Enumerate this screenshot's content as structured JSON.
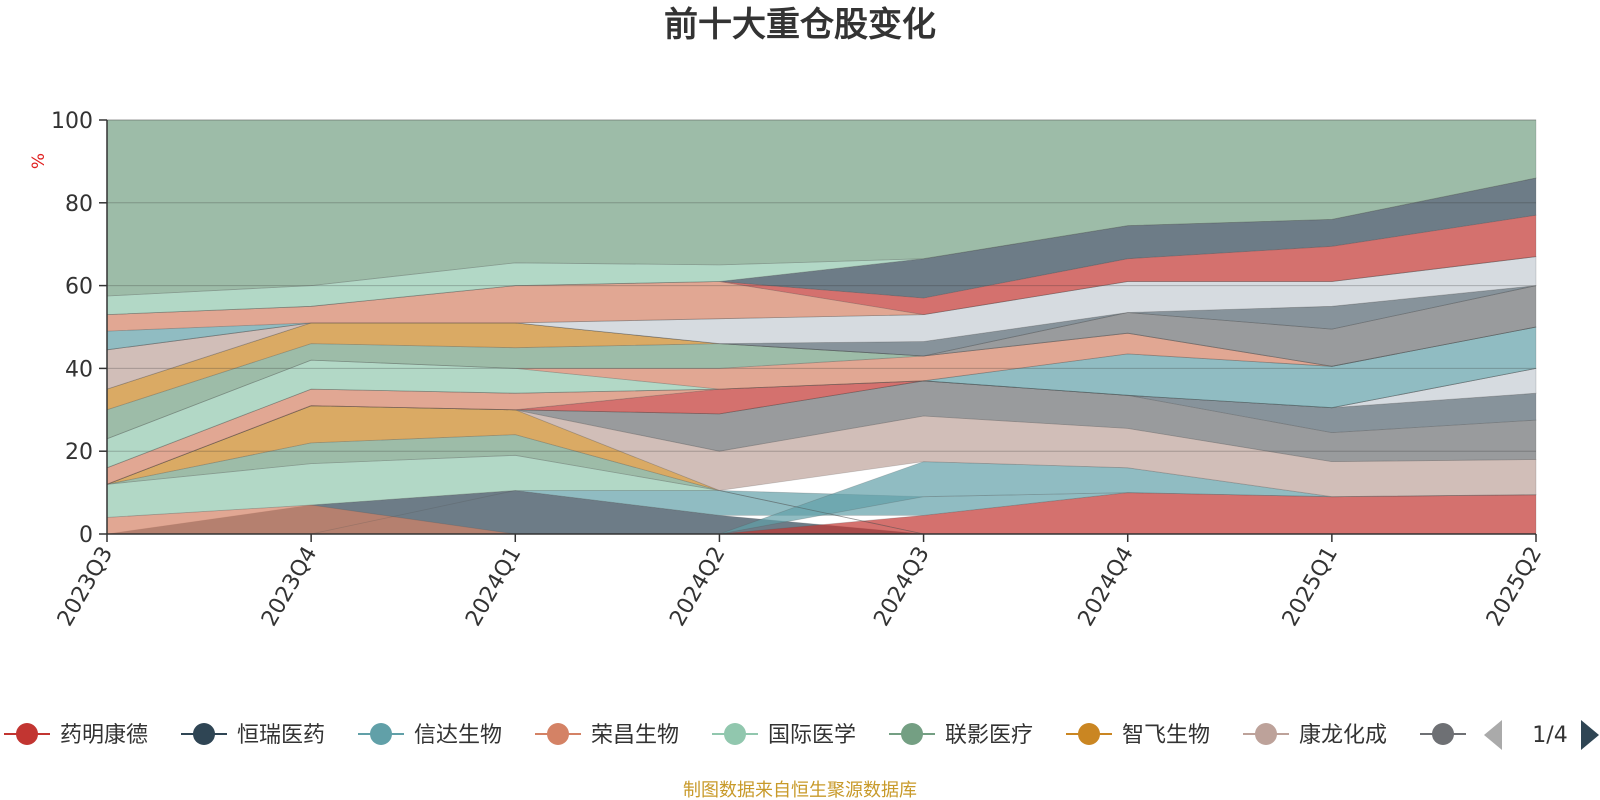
{
  "chart_data": {
    "type": "area",
    "title": "前十大重仓股变化",
    "ylabel": "%",
    "ylim": [
      0,
      100
    ],
    "yticks": [
      0,
      20,
      40,
      60,
      80,
      100
    ],
    "categories": [
      "2023Q3",
      "2023Q4",
      "2024Q1",
      "2024Q2",
      "2024Q3",
      "2024Q4",
      "2025Q1",
      "2025Q2"
    ],
    "grid": true,
    "legend_position": "bottom",
    "legend_page": "1/4",
    "bands": [
      {
        "color": "#2f4554",
        "opacity": 0.7,
        "lower": [
          0,
          0,
          0,
          0,
          0,
          0,
          0,
          0
        ],
        "upper": [
          0,
          7,
          10.5,
          4.5,
          0,
          0,
          0,
          0
        ]
      },
      {
        "color": "#c23531",
        "opacity": 0.7,
        "lower": [
          0,
          0,
          0,
          0,
          0,
          0,
          0,
          0
        ],
        "upper": [
          0,
          0,
          0,
          0,
          4.5,
          10,
          9,
          9.5
        ]
      },
      {
        "color": "#d48265",
        "opacity": 0.7,
        "lower": [
          0,
          0,
          0,
          0,
          0,
          0,
          0,
          0
        ],
        "upper": [
          4,
          7,
          0,
          0,
          0,
          0,
          0,
          0
        ]
      },
      {
        "color": "#61a0a8",
        "opacity": 0.7,
        "lower": [
          0,
          0,
          10.5,
          4.5,
          4.5,
          10,
          9,
          9.5
        ],
        "upper": [
          0,
          0,
          10.5,
          10.5,
          9,
          10,
          9,
          9.5
        ]
      },
      {
        "color": "#91c7ae",
        "opacity": 0.7,
        "lower": [
          4,
          7,
          10.5,
          10.5,
          0,
          0,
          0,
          0
        ],
        "upper": [
          12,
          17,
          19,
          10.5,
          0,
          0,
          0,
          0
        ]
      },
      {
        "color": "#61a0a8",
        "opacity": 0.7,
        "lower": [
          0,
          0,
          0,
          0,
          9,
          10,
          9,
          9.5
        ],
        "upper": [
          0,
          0,
          0,
          0,
          17.5,
          16,
          9,
          9.5
        ]
      },
      {
        "color": "#749f83",
        "opacity": 0.7,
        "lower": [
          12,
          17,
          19,
          10.5,
          0,
          0,
          0,
          0
        ],
        "upper": [
          12,
          22,
          24,
          10.5,
          0,
          0,
          0,
          0
        ]
      },
      {
        "color": "#ca8622",
        "opacity": 0.7,
        "lower": [
          12,
          22,
          24,
          10.5,
          0,
          0,
          0,
          0
        ],
        "upper": [
          12,
          31,
          30,
          10.5,
          0,
          0,
          0,
          0
        ]
      },
      {
        "color": "#bda29a",
        "opacity": 0.7,
        "lower": [
          12,
          31,
          30,
          10.5,
          17.5,
          16,
          9,
          9.5
        ],
        "upper": [
          12,
          31,
          30,
          20,
          28.5,
          25.5,
          17.5,
          18
        ]
      },
      {
        "color": "#6e7074",
        "opacity": 0.7,
        "lower": [
          12,
          31,
          30,
          20,
          28.5,
          25.5,
          17.5,
          18
        ],
        "upper": [
          12,
          31,
          30,
          29,
          37,
          33.5,
          24.5,
          27.5
        ]
      },
      {
        "color": "#546570",
        "opacity": 0.7,
        "lower": [
          12,
          31,
          30,
          29,
          37,
          33.5,
          24.5,
          27.5
        ],
        "upper": [
          12,
          31,
          30,
          29,
          37,
          33.5,
          30.5,
          34
        ]
      },
      {
        "color": "#c4ccd3",
        "opacity": 0.7,
        "lower": [
          12,
          31,
          30,
          29,
          37,
          33.5,
          30.5,
          34
        ],
        "upper": [
          12,
          31,
          30,
          29,
          37,
          33.5,
          30.5,
          40
        ]
      },
      {
        "color": "#c23531",
        "opacity": 0.7,
        "lower": [
          12,
          31,
          30,
          29,
          37,
          33.5,
          30.5,
          40
        ],
        "upper": [
          12,
          31,
          30,
          35,
          37,
          33.5,
          30.5,
          40
        ]
      },
      {
        "color": "#d48265",
        "opacity": 0.7,
        "lower": [
          12,
          31,
          30,
          35,
          37,
          33.5,
          30.5,
          40
        ],
        "upper": [
          16,
          35,
          34,
          35,
          37,
          33.5,
          30.5,
          40
        ]
      },
      {
        "color": "#2f4554",
        "opacity": 0.7,
        "lower": [
          16,
          35,
          34,
          35,
          37,
          33.5,
          30.5,
          40
        ],
        "upper": [
          16,
          35,
          34,
          35,
          37,
          33.5,
          30.5,
          40
        ]
      },
      {
        "color": "#61a0a8",
        "opacity": 0.7,
        "lower": [
          16,
          35,
          34,
          35,
          37,
          33.5,
          30.5,
          40
        ],
        "upper": [
          16,
          35,
          34,
          35,
          37,
          43.5,
          40.5,
          50
        ]
      },
      {
        "color": "#91c7ae",
        "opacity": 0.7,
        "lower": [
          16,
          35,
          34,
          35,
          37,
          43.5,
          40.5,
          50
        ],
        "upper": [
          23,
          42,
          40,
          35,
          37,
          43.5,
          40.5,
          50
        ]
      },
      {
        "color": "#d48265",
        "opacity": 0.7,
        "lower": [
          23,
          42,
          40,
          35,
          37,
          43.5,
          40.5,
          50
        ],
        "upper": [
          23,
          42,
          40,
          40,
          43,
          48.5,
          40.5,
          50
        ]
      },
      {
        "color": "#749f83",
        "opacity": 0.7,
        "lower": [
          23,
          42,
          40,
          40,
          43,
          48.5,
          40.5,
          50
        ],
        "upper": [
          30,
          46,
          45,
          46,
          43,
          48.5,
          40.5,
          50
        ]
      },
      {
        "color": "#ca8622",
        "opacity": 0.7,
        "lower": [
          30,
          46,
          45,
          46,
          43,
          48.5,
          40.5,
          50
        ],
        "upper": [
          35,
          51,
          51,
          46,
          43,
          48.5,
          40.5,
          50
        ]
      },
      {
        "color": "#6e7074",
        "opacity": 0.7,
        "lower": [
          35,
          51,
          51,
          46,
          43,
          48.5,
          40.5,
          50
        ],
        "upper": [
          35,
          51,
          51,
          46,
          43,
          53.5,
          49.5,
          60
        ]
      },
      {
        "color": "#bda29a",
        "opacity": 0.7,
        "lower": [
          35,
          51,
          51,
          46,
          43,
          53.5,
          49.5,
          60
        ],
        "upper": [
          44.5,
          51,
          51,
          46,
          43,
          53.5,
          49.5,
          60
        ]
      },
      {
        "color": "#546570",
        "opacity": 0.7,
        "lower": [
          44.5,
          51,
          51,
          46,
          43,
          53.5,
          49.5,
          60
        ],
        "upper": [
          44.5,
          51,
          51,
          46,
          46.5,
          53.5,
          55,
          60
        ]
      },
      {
        "color": "#c4ccd3",
        "opacity": 0.7,
        "lower": [
          44.5,
          51,
          51,
          46,
          46.5,
          53.5,
          55,
          60
        ],
        "upper": [
          44.5,
          51,
          51,
          52,
          53,
          61,
          61,
          67
        ]
      },
      {
        "color": "#61a0a8",
        "opacity": 0.7,
        "lower": [
          44.5,
          51,
          51,
          52,
          53,
          61,
          61,
          67
        ],
        "upper": [
          49,
          51,
          51,
          52,
          53,
          61,
          61,
          67
        ]
      },
      {
        "color": "#d48265",
        "opacity": 0.7,
        "lower": [
          49,
          51,
          51,
          52,
          53,
          61,
          61,
          67
        ],
        "upper": [
          53,
          55,
          60,
          61,
          53,
          61,
          61,
          67
        ]
      },
      {
        "color": "#c23531",
        "opacity": 0.7,
        "lower": [
          53,
          55,
          60,
          61,
          53,
          61,
          61,
          67
        ],
        "upper": [
          53,
          55,
          60,
          61,
          57,
          66.5,
          69.5,
          77
        ]
      },
      {
        "color": "#2f4554",
        "opacity": 0.7,
        "lower": [
          53,
          55,
          60,
          61,
          57,
          66.5,
          69.5,
          77
        ],
        "upper": [
          53,
          55,
          60,
          61,
          66.5,
          74.5,
          76,
          86
        ]
      },
      {
        "color": "#91c7ae",
        "opacity": 0.7,
        "lower": [
          53,
          55,
          60,
          61,
          66.5,
          74.5,
          76,
          86
        ],
        "upper": [
          57.5,
          60,
          65.5,
          65,
          66.5,
          74.5,
          76,
          86
        ]
      },
      {
        "color": "#749f83",
        "opacity": 0.7,
        "lower": [
          57.5,
          60,
          65.5,
          65,
          66.5,
          74.5,
          76,
          86
        ],
        "upper": [
          100,
          100,
          100,
          100,
          100,
          100,
          100,
          100
        ]
      }
    ],
    "legend": [
      {
        "name": "药明康德",
        "color": "#c23531"
      },
      {
        "name": "恒瑞医药",
        "color": "#2f4554"
      },
      {
        "name": "信达生物",
        "color": "#61a0a8"
      },
      {
        "name": "荣昌生物",
        "color": "#d48265"
      },
      {
        "name": "国际医学",
        "color": "#91c7ae"
      },
      {
        "name": "联影医疗",
        "color": "#749f83"
      },
      {
        "name": "智飞生物",
        "color": "#ca8622"
      },
      {
        "name": "康龙化成",
        "color": "#bda29a"
      },
      {
        "name": "",
        "color": "#6e7074"
      }
    ],
    "source_note": "制图数据来自恒生聚源数据库"
  }
}
